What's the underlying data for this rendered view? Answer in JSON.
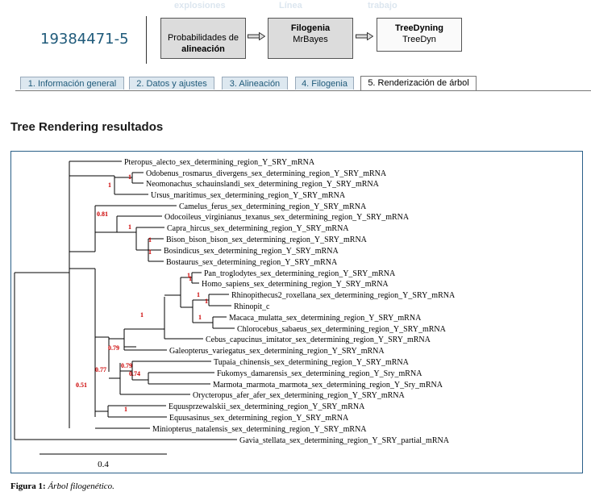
{
  "header": {
    "faded_labels": [
      "explosiones",
      "Línea",
      "trabajo"
    ],
    "job_id": "19384471-5"
  },
  "pipeline": {
    "steps": [
      {
        "title": "Probabilidades de",
        "subtitle": "alineación"
      },
      {
        "title": "Filogenia",
        "subtitle": "MrBayes"
      },
      {
        "title": "TreeDyning",
        "subtitle": "TreeDyn"
      }
    ]
  },
  "tabs": [
    {
      "label": "1. Información general",
      "active": false
    },
    {
      "label": "2. Datos y ajustes",
      "active": false
    },
    {
      "label": "3. Alineación",
      "active": false
    },
    {
      "label": "4. Filogenia",
      "active": false
    },
    {
      "label": "5. Renderización de árbol",
      "active": true
    }
  ],
  "section_title": "Tree Rendering resultados",
  "tree": {
    "colors": {
      "branch": "#000000",
      "support": "#cc0000",
      "frame": "#2a5f88"
    },
    "leaves": [
      "Pteropus_alecto_sex_determining_region_Y_SRY_mRNA",
      "Odobenus_rosmarus_divergens_sex_determining_region_Y_SRY_mRNA",
      "Neomonachus_schauinslandi_sex_determining_region_Y_SRY_mRNA",
      "Ursus_maritimus_sex_determining_region_Y_SRY_mRNA",
      "Camelus_ferus_sex_determining_region_Y_SRY_mRNA",
      "Odocoileus_virginianus_texanus_sex_determining_region_Y_SRY_mRNA",
      "Capra_hircus_sex_determining_region_Y_SRY_mRNA",
      "Bison_bison_bison_sex_determining_region_Y_SRY_mRNA",
      "Bosindicus_sex_determining_region_Y_SRY_mRNA",
      "Bostaurus_sex_determining_region_Y_SRY_mRNA",
      "Pan_troglodytes_sex_determining_region_Y_SRY_mRNA",
      "Homo_sapiens_sex_determining_region_Y_SRY_mRNA",
      "Rhinopithecus2_roxellana_sex_determining_region_Y_SRY_mRNA",
      "Rhinopit_c",
      "Macaca_mulatta_sex_determining_region_Y_SRY_mRNA",
      "Chlorocebus_sabaeus_sex_determining_region_Y_SRY_mRNA",
      "Cebus_capucinus_imitator_sex_determining_region_Y_SRY_mRNA",
      "Galeopterus_variegatus_sex_determining_region_Y_SRY_mRNA",
      "Tupaia_chinensis_sex_determining_region_Y_SRY_mRNA",
      "Fukomys_damarensis_sex_determining_region_Y_Sry_mRNA",
      "Marmota_marmota_marmota_sex_determining_region_Y_Sry_mRNA",
      "Orycteropus_afer_afer_sex_determining_region_Y_SRY_mRNA",
      "Equusprzewalskii_sex_determining_region_Y_SRY_mRNA",
      "Equusasinus_sex_determining_region_Y_SRY_mRNA",
      "Miniopterus_natalensis_sex_determining_region_Y_SRY_mRNA",
      "Gavia_stellata_sex_determining_region_Y_SRY_partial_mRNA"
    ],
    "support_values": [
      "1",
      "1",
      "0.81",
      "1",
      "1",
      "1",
      "1",
      "1",
      "1",
      "1",
      "1",
      "1",
      "0.79",
      "0.77",
      "0.79",
      "0.74",
      "0.51",
      "1"
    ],
    "scale_label": "0.4"
  },
  "caption": {
    "label": "Figura 1:",
    "text": "Árbol filogenético."
  }
}
